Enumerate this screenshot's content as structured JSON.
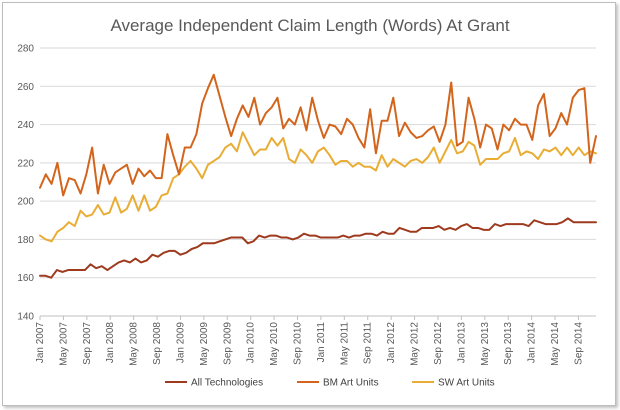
{
  "chart_data": {
    "type": "line",
    "title": "Average Independent Claim Length (Words) At Grant",
    "xlabel": "",
    "ylabel": "",
    "ylim": [
      140,
      280
    ],
    "yticks": [
      140,
      160,
      180,
      200,
      220,
      240,
      260,
      280
    ],
    "grid": true,
    "legend_position": "bottom",
    "x_tick_labels": [
      "Jan 2007",
      "May 2007",
      "Sep 2007",
      "Jan 2008",
      "May 2008",
      "Sep 2008",
      "Jan 2009",
      "May 2009",
      "Sep 2009",
      "Jan 2010",
      "May 2010",
      "Sep 2010",
      "Jan 2011",
      "May 2011",
      "Sep 2011",
      "Jan 2012",
      "May 2012",
      "Sep 2012",
      "Jan 2013",
      "May 2013",
      "Sep 2013",
      "Jan 2014",
      "May 2014",
      "Sep 2014"
    ],
    "x_start": "Jan 2007",
    "x_end": "Dec 2014",
    "series": [
      {
        "name": "All Technologies",
        "color": "#9e3a1e",
        "values": [
          161,
          161,
          160,
          164,
          163,
          164,
          164,
          164,
          164,
          167,
          165,
          166,
          164,
          166,
          168,
          169,
          168,
          170,
          168,
          169,
          172,
          171,
          173,
          174,
          174,
          172,
          173,
          175,
          176,
          178,
          178,
          178,
          179,
          180,
          181,
          181,
          181,
          178,
          179,
          182,
          181,
          182,
          182,
          181,
          181,
          180,
          181,
          183,
          182,
          182,
          181,
          181,
          181,
          181,
          182,
          181,
          182,
          182,
          183,
          183,
          182,
          184,
          183,
          183,
          186,
          185,
          184,
          184,
          186,
          186,
          186,
          187,
          185,
          186,
          185,
          187,
          188,
          186,
          186,
          185,
          185,
          188,
          187,
          188,
          188,
          188,
          188,
          187,
          190,
          189,
          188,
          188,
          188,
          189,
          191,
          189,
          189,
          189,
          189,
          189
        ]
      },
      {
        "name": "BM Art Units",
        "color": "#d3641c",
        "values": [
          207,
          214,
          209,
          220,
          203,
          212,
          211,
          204,
          214,
          228,
          204,
          219,
          209,
          215,
          217,
          219,
          209,
          217,
          213,
          216,
          212,
          212,
          235,
          224,
          214,
          228,
          228,
          235,
          251,
          259,
          266,
          255,
          244,
          234,
          243,
          250,
          244,
          254,
          240,
          246,
          249,
          254,
          238,
          243,
          240,
          249,
          237,
          254,
          242,
          233,
          240,
          239,
          235,
          243,
          240,
          233,
          228,
          248,
          225,
          242,
          242,
          254,
          234,
          241,
          236,
          233,
          234,
          237,
          239,
          231,
          240,
          262,
          229,
          231,
          254,
          243,
          228,
          240,
          238,
          227,
          240,
          237,
          243,
          240,
          240,
          232,
          250,
          256,
          234,
          238,
          246,
          240,
          254,
          258,
          259,
          220,
          234
        ]
      },
      {
        "name": "SW Art Units",
        "color": "#e9ad35",
        "values": [
          182,
          180,
          179,
          184,
          186,
          189,
          187,
          195,
          192,
          193,
          198,
          193,
          194,
          202,
          194,
          196,
          203,
          195,
          203,
          195,
          197,
          203,
          204,
          212,
          214,
          218,
          221,
          217,
          212,
          219,
          221,
          223,
          228,
          230,
          226,
          236,
          230,
          224,
          227,
          227,
          233,
          229,
          233,
          222,
          220,
          227,
          224,
          220,
          226,
          228,
          224,
          219,
          221,
          221,
          218,
          220,
          218,
          218,
          216,
          224,
          218,
          222,
          220,
          218,
          221,
          222,
          220,
          223,
          228,
          220,
          226,
          232,
          225,
          226,
          231,
          229,
          219,
          222,
          222,
          222,
          225,
          226,
          233,
          224,
          226,
          225,
          222,
          227,
          226,
          228,
          224,
          228,
          224,
          228,
          224,
          226,
          225
        ]
      }
    ]
  }
}
